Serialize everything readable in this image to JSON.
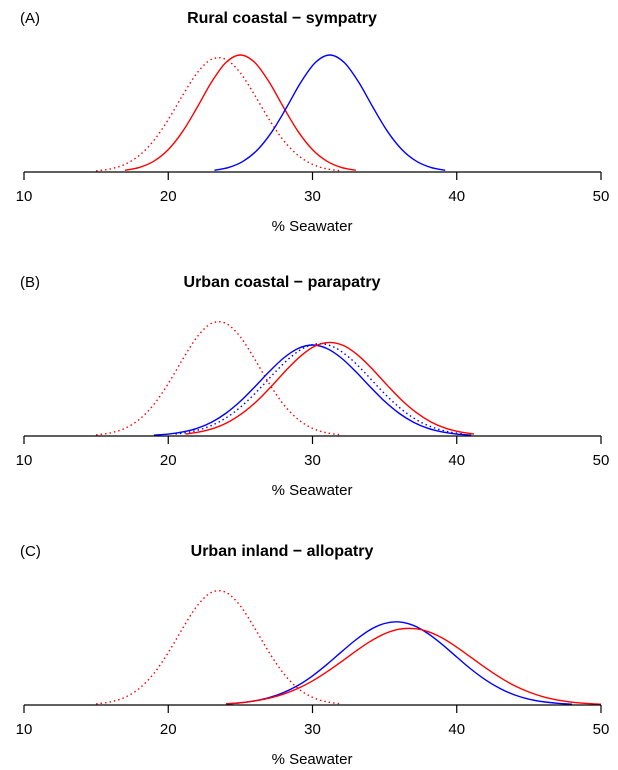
{
  "chart_data": [
    {
      "type": "line",
      "label": "(A)",
      "title": "Rural coastal − sympatry",
      "xlabel": "% Seawater",
      "xlim": [
        10,
        50
      ],
      "xticks": [
        10,
        20,
        30,
        40,
        50
      ],
      "ylim": [
        0,
        1
      ],
      "series": [
        {
          "color": "#ff0000",
          "style": "dotted",
          "x": [
            15,
            16,
            17,
            18,
            19,
            20,
            21,
            22,
            23,
            24,
            25,
            26,
            27,
            28,
            29,
            30,
            31,
            32
          ],
          "values": [
            0.009,
            0.024,
            0.059,
            0.128,
            0.242,
            0.403,
            0.59,
            0.762,
            0.866,
            0.866,
            0.762,
            0.59,
            0.403,
            0.242,
            0.128,
            0.059,
            0.024,
            0.009
          ]
        },
        {
          "color": "#ff0000",
          "style": "solid",
          "x": [
            17,
            18,
            19,
            20,
            21,
            22,
            23,
            24,
            25,
            26,
            27,
            28,
            29,
            30,
            31,
            32,
            33
          ],
          "values": [
            0.013,
            0.035,
            0.083,
            0.172,
            0.312,
            0.496,
            0.691,
            0.842,
            0.9,
            0.842,
            0.691,
            0.496,
            0.312,
            0.172,
            0.083,
            0.035,
            0.013
          ]
        },
        {
          "color": "#0000ff",
          "style": "solid",
          "x": [
            23.2,
            24.2,
            25.2,
            26.2,
            27.2,
            28.2,
            29.2,
            30.2,
            31.2,
            32.2,
            33.2,
            34.2,
            35.2,
            36.2,
            37.2,
            38.2,
            39.2
          ],
          "values": [
            0.013,
            0.035,
            0.083,
            0.172,
            0.312,
            0.496,
            0.691,
            0.842,
            0.9,
            0.842,
            0.691,
            0.496,
            0.312,
            0.172,
            0.083,
            0.035,
            0.013
          ]
        }
      ]
    },
    {
      "type": "line",
      "label": "(B)",
      "title": "Urban coastal − parapatry",
      "xlabel": "% Seawater",
      "xlim": [
        10,
        50
      ],
      "xticks": [
        10,
        20,
        30,
        40,
        50
      ],
      "ylim": [
        0,
        1
      ],
      "series": [
        {
          "color": "#ff0000",
          "style": "dotted",
          "x": [
            15,
            16,
            17,
            18,
            19,
            20,
            21,
            22,
            23,
            24,
            25,
            26,
            27,
            28,
            29,
            30,
            31,
            32
          ],
          "values": [
            0.009,
            0.024,
            0.059,
            0.128,
            0.242,
            0.403,
            0.59,
            0.762,
            0.866,
            0.866,
            0.762,
            0.59,
            0.403,
            0.242,
            0.128,
            0.059,
            0.024,
            0.009
          ]
        },
        {
          "color": "#0000ff",
          "style": "solid",
          "x": [
            19,
            20,
            21,
            22,
            23,
            24,
            25,
            26,
            27,
            28,
            29,
            30,
            31,
            32,
            33,
            34,
            35,
            36,
            37,
            38,
            39,
            40,
            41
          ],
          "values": [
            0.007,
            0.015,
            0.031,
            0.059,
            0.106,
            0.175,
            0.267,
            0.378,
            0.495,
            0.6,
            0.673,
            0.7,
            0.673,
            0.6,
            0.495,
            0.378,
            0.267,
            0.175,
            0.106,
            0.059,
            0.031,
            0.015,
            0.007
          ]
        },
        {
          "color": "#0000ff",
          "style": "dotted",
          "x": [
            20.5,
            21.5,
            22.5,
            23.5,
            24.5,
            25.5,
            26.5,
            27.5,
            28.5,
            29.5,
            30.5,
            31.5,
            32.5,
            33.5,
            34.5,
            35.5,
            36.5,
            37.5,
            38.5,
            39.5,
            40.5
          ],
          "values": [
            0.015,
            0.031,
            0.06,
            0.107,
            0.177,
            0.271,
            0.383,
            0.502,
            0.608,
            0.683,
            0.71,
            0.683,
            0.608,
            0.502,
            0.383,
            0.271,
            0.177,
            0.107,
            0.06,
            0.031,
            0.015
          ]
        },
        {
          "color": "#ff0000",
          "style": "solid",
          "x": [
            21.2,
            22.2,
            23.2,
            24.2,
            25.2,
            26.2,
            27.2,
            28.2,
            29.2,
            30.2,
            31.2,
            32.2,
            33.2,
            34.2,
            35.2,
            36.2,
            37.2,
            38.2,
            39.2,
            40.2,
            41.2
          ],
          "values": [
            0.015,
            0.032,
            0.061,
            0.109,
            0.18,
            0.274,
            0.388,
            0.509,
            0.617,
            0.693,
            0.72,
            0.693,
            0.617,
            0.509,
            0.388,
            0.274,
            0.18,
            0.109,
            0.061,
            0.032,
            0.015
          ]
        }
      ]
    },
    {
      "type": "line",
      "label": "(C)",
      "title": "Urban inland − allopatry",
      "xlabel": "% Seawater",
      "xlim": [
        10,
        50
      ],
      "xticks": [
        10,
        20,
        30,
        40,
        50
      ],
      "ylim": [
        0,
        1
      ],
      "series": [
        {
          "color": "#ff0000",
          "style": "dotted",
          "x": [
            15,
            16,
            17,
            18,
            19,
            20,
            21,
            22,
            23,
            24,
            25,
            26,
            27,
            28,
            29,
            30,
            31,
            32
          ],
          "values": [
            0.009,
            0.024,
            0.059,
            0.128,
            0.242,
            0.403,
            0.59,
            0.762,
            0.866,
            0.866,
            0.762,
            0.59,
            0.403,
            0.242,
            0.128,
            0.059,
            0.024,
            0.009
          ]
        },
        {
          "color": "#0000ff",
          "style": "solid",
          "x": [
            24,
            25,
            26,
            27,
            28,
            29,
            30,
            31,
            32,
            33,
            34,
            35,
            36,
            37,
            38,
            39,
            40,
            41,
            42,
            43,
            44,
            45,
            46,
            47,
            48
          ],
          "values": [
            0.008,
            0.017,
            0.032,
            0.057,
            0.096,
            0.151,
            0.224,
            0.312,
            0.408,
            0.501,
            0.579,
            0.627,
            0.639,
            0.612,
            0.55,
            0.465,
            0.369,
            0.275,
            0.193,
            0.127,
            0.078,
            0.045,
            0.025,
            0.013,
            0.006
          ]
        },
        {
          "color": "#ff0000",
          "style": "solid",
          "x": [
            24,
            25,
            26,
            27,
            28,
            29,
            30,
            31,
            32,
            33,
            34,
            35,
            36,
            37,
            38,
            39,
            40,
            41,
            42,
            43,
            44,
            45,
            46,
            47,
            48,
            49,
            50
          ],
          "values": [
            0.009,
            0.017,
            0.031,
            0.052,
            0.084,
            0.128,
            0.185,
            0.255,
            0.333,
            0.414,
            0.489,
            0.548,
            0.583,
            0.588,
            0.565,
            0.515,
            0.445,
            0.366,
            0.286,
            0.212,
            0.149,
            0.1,
            0.063,
            0.038,
            0.022,
            0.012,
            0.006
          ]
        }
      ]
    }
  ]
}
